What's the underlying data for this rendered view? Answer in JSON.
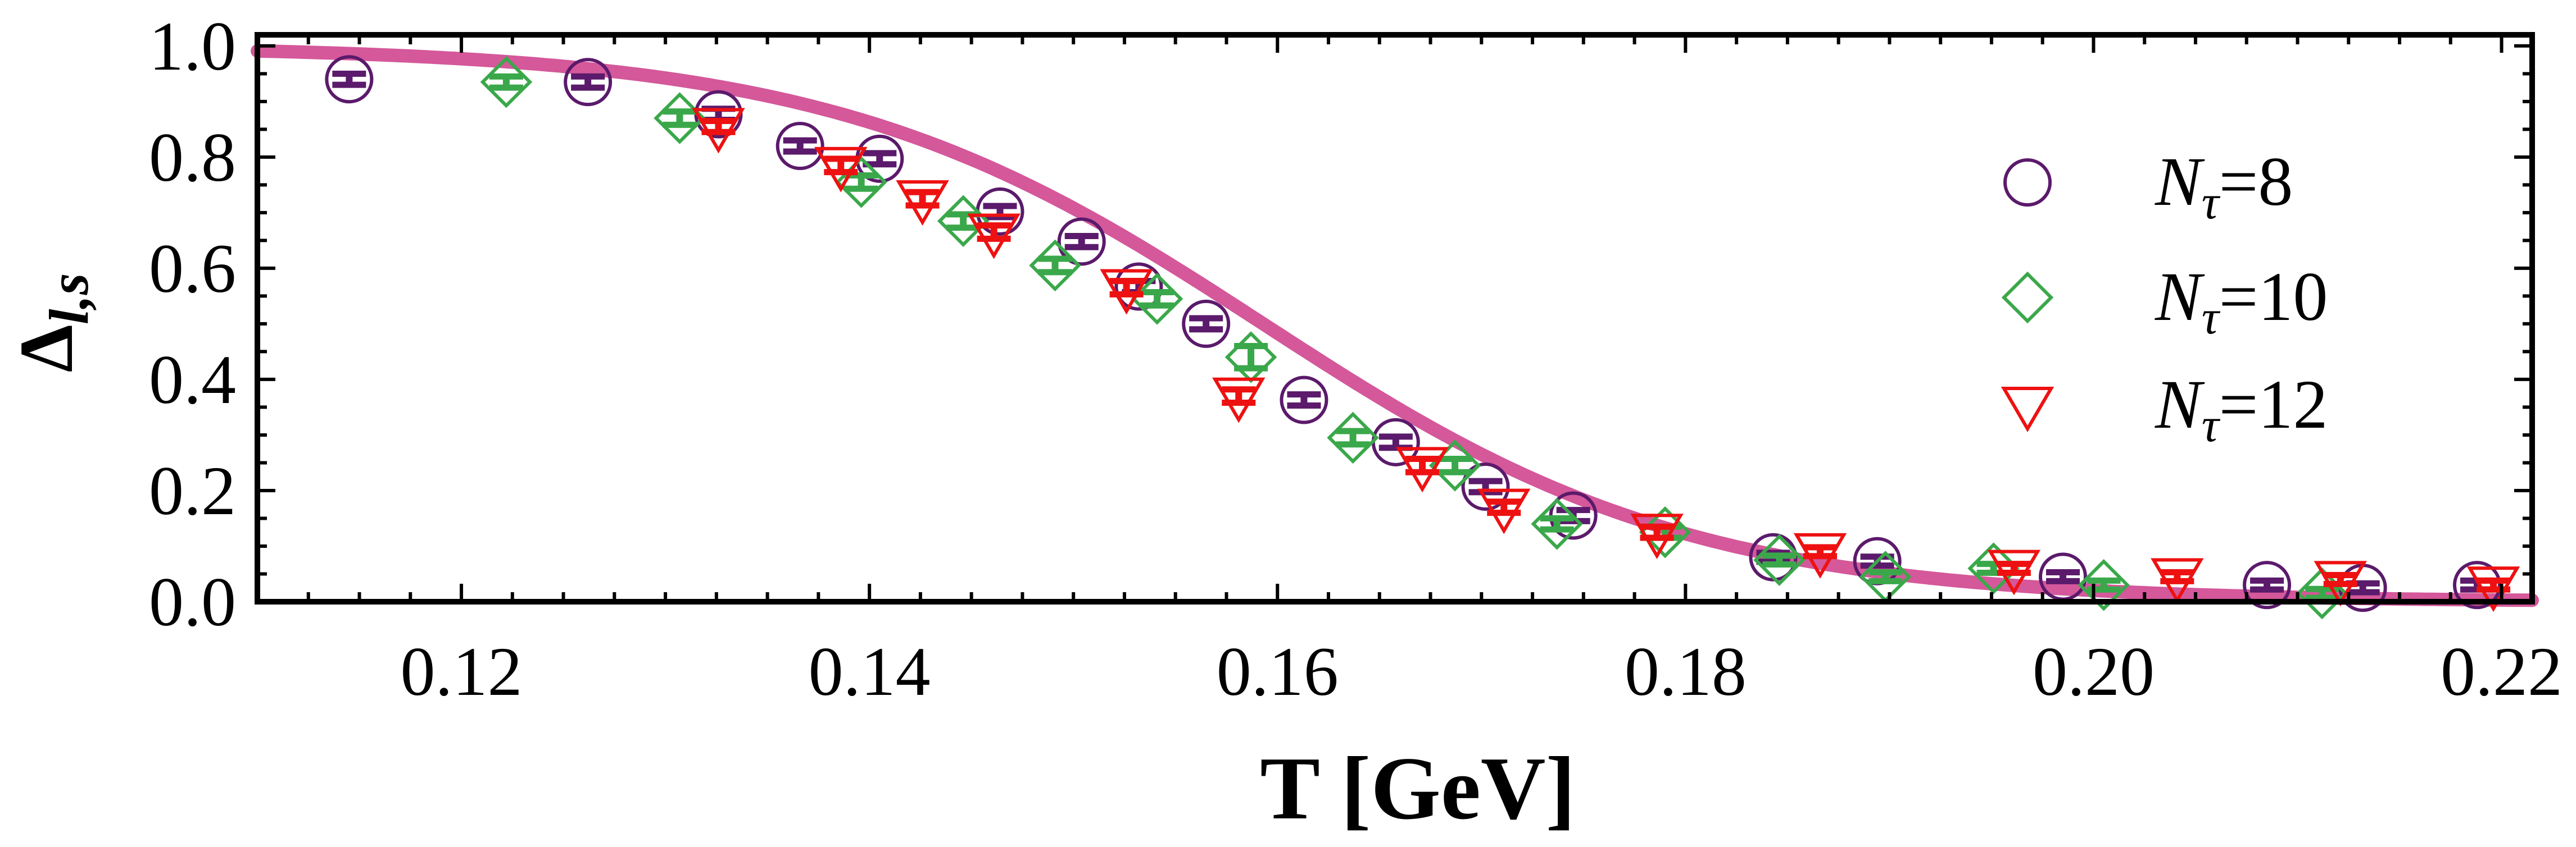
{
  "chart_data": {
    "type": "scatter",
    "title": "",
    "xlabel": "T [GeV]",
    "ylabel": "Δl,s",
    "ylabel_main": "Δ",
    "ylabel_sub": "l,s",
    "xlim": [
      0.11,
      0.2215
    ],
    "ylim": [
      0.0,
      1.02
    ],
    "x_ticks": [
      0.12,
      0.14,
      0.16,
      0.18,
      0.2,
      0.22
    ],
    "x_tick_labels": [
      "0.12",
      "0.14",
      "0.16",
      "0.18",
      "0.20",
      "0.22"
    ],
    "y_ticks": [
      0.0,
      0.2,
      0.4,
      0.6,
      0.8,
      1.0
    ],
    "y_tick_labels": [
      "0.0",
      "0.2",
      "0.4",
      "0.6",
      "0.8",
      "1.0"
    ],
    "grid": false,
    "legend_position": "right",
    "colors": {
      "nt8": "#5b1a6b",
      "nt10": "#3aa84a",
      "nt12": "#ee1111",
      "curve": "#d4589a"
    },
    "series": [
      {
        "name": "Nτ=8",
        "legend_main": "N",
        "legend_sub": "τ",
        "legend_value": "=8",
        "marker": "circle",
        "color_key": "nt8",
        "points": [
          {
            "x": 0.1145,
            "y": 0.94,
            "err": 0.01
          },
          {
            "x": 0.1262,
            "y": 0.935,
            "err": 0.01
          },
          {
            "x": 0.1326,
            "y": 0.877,
            "err": 0.01
          },
          {
            "x": 0.1366,
            "y": 0.82,
            "err": 0.01
          },
          {
            "x": 0.1405,
            "y": 0.797,
            "err": 0.01
          },
          {
            "x": 0.1464,
            "y": 0.702,
            "err": 0.01
          },
          {
            "x": 0.1504,
            "y": 0.648,
            "err": 0.01
          },
          {
            "x": 0.1532,
            "y": 0.567,
            "err": 0.01
          },
          {
            "x": 0.1565,
            "y": 0.5,
            "err": 0.01
          },
          {
            "x": 0.1613,
            "y": 0.363,
            "err": 0.01
          },
          {
            "x": 0.1658,
            "y": 0.287,
            "err": 0.01
          },
          {
            "x": 0.1702,
            "y": 0.207,
            "err": 0.01
          },
          {
            "x": 0.1745,
            "y": 0.155,
            "err": 0.01
          },
          {
            "x": 0.1843,
            "y": 0.08,
            "err": 0.008
          },
          {
            "x": 0.1894,
            "y": 0.073,
            "err": 0.008
          },
          {
            "x": 0.1985,
            "y": 0.045,
            "err": 0.008
          },
          {
            "x": 0.2085,
            "y": 0.03,
            "err": 0.008
          },
          {
            "x": 0.2132,
            "y": 0.025,
            "err": 0.008
          },
          {
            "x": 0.2188,
            "y": 0.03,
            "err": 0.008
          }
        ]
      },
      {
        "name": "Nτ=10",
        "legend_main": "N",
        "legend_sub": "τ",
        "legend_value": "=10",
        "marker": "diamond",
        "color_key": "nt10",
        "points": [
          {
            "x": 0.1222,
            "y": 0.935,
            "err": 0.01
          },
          {
            "x": 0.1307,
            "y": 0.87,
            "err": 0.012
          },
          {
            "x": 0.1396,
            "y": 0.755,
            "err": 0.012
          },
          {
            "x": 0.1446,
            "y": 0.685,
            "err": 0.012
          },
          {
            "x": 0.1491,
            "y": 0.605,
            "err": 0.012
          },
          {
            "x": 0.1541,
            "y": 0.545,
            "err": 0.012
          },
          {
            "x": 0.1587,
            "y": 0.44,
            "err": 0.02
          },
          {
            "x": 0.1637,
            "y": 0.295,
            "err": 0.012
          },
          {
            "x": 0.1687,
            "y": 0.245,
            "err": 0.012
          },
          {
            "x": 0.1737,
            "y": 0.14,
            "err": 0.01
          },
          {
            "x": 0.179,
            "y": 0.125,
            "err": 0.01
          },
          {
            "x": 0.1846,
            "y": 0.075,
            "err": 0.008
          },
          {
            "x": 0.1898,
            "y": 0.045,
            "err": 0.008
          },
          {
            "x": 0.1951,
            "y": 0.06,
            "err": 0.008
          },
          {
            "x": 0.2005,
            "y": 0.03,
            "err": 0.008
          },
          {
            "x": 0.2112,
            "y": 0.015,
            "err": 0.008
          }
        ]
      },
      {
        "name": "Nτ=12",
        "legend_main": "N",
        "legend_sub": "τ",
        "legend_value": "=12",
        "marker": "triangle-down",
        "color_key": "nt12",
        "points": [
          {
            "x": 0.1326,
            "y": 0.855,
            "err": 0.01
          },
          {
            "x": 0.1386,
            "y": 0.785,
            "err": 0.012
          },
          {
            "x": 0.1426,
            "y": 0.725,
            "err": 0.012
          },
          {
            "x": 0.1461,
            "y": 0.665,
            "err": 0.012
          },
          {
            "x": 0.1526,
            "y": 0.565,
            "err": 0.012
          },
          {
            "x": 0.1581,
            "y": 0.37,
            "err": 0.012
          },
          {
            "x": 0.1671,
            "y": 0.245,
            "err": 0.012
          },
          {
            "x": 0.1711,
            "y": 0.17,
            "err": 0.01
          },
          {
            "x": 0.1786,
            "y": 0.125,
            "err": 0.01
          },
          {
            "x": 0.1866,
            "y": 0.09,
            "err": 0.008
          },
          {
            "x": 0.1961,
            "y": 0.06,
            "err": 0.008
          },
          {
            "x": 0.2041,
            "y": 0.045,
            "err": 0.008
          },
          {
            "x": 0.2121,
            "y": 0.04,
            "err": 0.008
          },
          {
            "x": 0.2196,
            "y": 0.03,
            "err": 0.008
          }
        ]
      }
    ],
    "curve": {
      "name": "model curve",
      "type": "sigmoid",
      "center": 0.1593,
      "width": 0.0105,
      "amplitude": 1.0
    }
  }
}
